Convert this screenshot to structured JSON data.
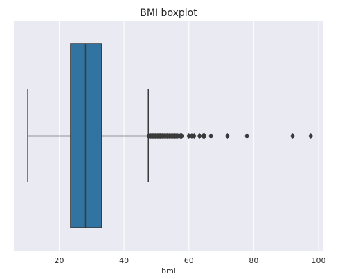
{
  "chart_data": {
    "type": "boxplot",
    "title": "BMI boxplot",
    "xlabel": "bmi",
    "ylabel": "",
    "orientation": "horizontal",
    "xlim": [
      6,
      101.5
    ],
    "xticks": [
      20,
      40,
      60,
      80,
      100
    ],
    "grid": true,
    "colors": {
      "background": "#eaeaf2",
      "grid": "#ffffff",
      "box_fill": "#3274a1",
      "lines": "#3a3a3a",
      "text": "#262626"
    },
    "box": {
      "whisker_low": 10.3,
      "q1": 23.5,
      "median": 28.1,
      "q3": 33.1,
      "whisker_high": 47.5
    },
    "outliers": [
      47.6,
      47.9,
      48.2,
      48.5,
      48.8,
      49.1,
      49.4,
      49.7,
      50.0,
      50.3,
      50.6,
      50.9,
      51.2,
      51.5,
      51.8,
      52.1,
      52.4,
      52.7,
      53.0,
      53.3,
      53.6,
      53.9,
      54.2,
      54.5,
      54.8,
      55.1,
      55.4,
      55.7,
      56.0,
      56.3,
      56.6,
      57.0,
      57.4,
      57.8,
      60.0,
      60.9,
      61.6,
      63.3,
      64.4,
      64.8,
      66.8,
      71.9,
      77.9,
      92.0,
      97.6
    ]
  }
}
